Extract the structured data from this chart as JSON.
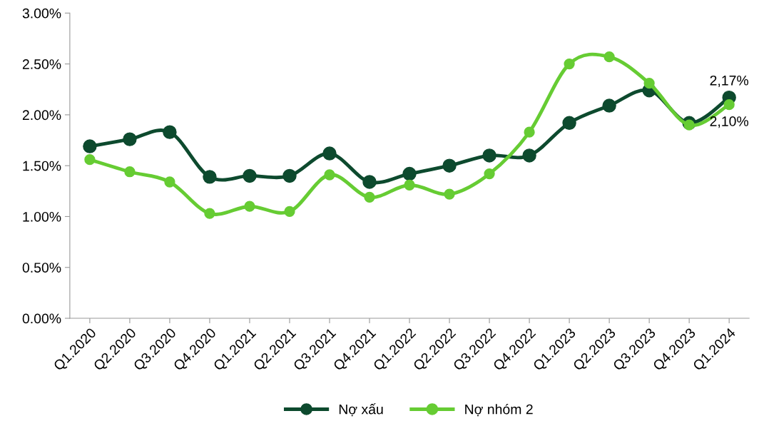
{
  "chart_data": {
    "type": "line",
    "categories": [
      "Q1.2020",
      "Q2.2020",
      "Q3.2020",
      "Q4.2020",
      "Q1.2021",
      "Q2.2021",
      "Q3.2021",
      "Q4.2021",
      "Q1.2022",
      "Q2.2022",
      "Q3.2022",
      "Q4.2022",
      "Q1.2023",
      "Q2.2023",
      "Q3.2023",
      "Q4.2023",
      "Q1.2024"
    ],
    "series": [
      {
        "name": "Nợ xấu",
        "color": "#0d4a2e",
        "values": [
          1.69,
          1.76,
          1.83,
          1.39,
          1.4,
          1.4,
          1.62,
          1.34,
          1.42,
          1.5,
          1.6,
          1.6,
          1.92,
          2.09,
          2.24,
          1.92,
          2.17
        ],
        "value_labels": [
          null,
          null,
          null,
          null,
          null,
          null,
          null,
          null,
          null,
          null,
          null,
          null,
          null,
          null,
          null,
          null,
          "2,17%"
        ]
      },
      {
        "name": "Nợ nhóm 2",
        "color": "#66cc33",
        "values": [
          1.56,
          1.44,
          1.34,
          1.03,
          1.1,
          1.05,
          1.41,
          1.19,
          1.31,
          1.22,
          1.42,
          1.83,
          2.5,
          2.57,
          2.31,
          1.9,
          2.1
        ],
        "value_labels": [
          null,
          null,
          null,
          null,
          null,
          null,
          null,
          null,
          null,
          null,
          null,
          null,
          null,
          null,
          null,
          null,
          "2,10%"
        ]
      }
    ],
    "ylim": [
      0,
      3
    ],
    "yticks": [
      {
        "value": 0,
        "label": "0.00%"
      },
      {
        "value": 0.5,
        "label": "0.50%"
      },
      {
        "value": 1,
        "label": "1.00%"
      },
      {
        "value": 1.5,
        "label": "1.50%"
      },
      {
        "value": 2,
        "label": "2.00%"
      },
      {
        "value": 2.5,
        "label": "2.50%"
      },
      {
        "value": 3,
        "label": "3.00%"
      }
    ],
    "grid": false,
    "legend": "bottom",
    "marker": "circle",
    "line_style": "solid"
  }
}
